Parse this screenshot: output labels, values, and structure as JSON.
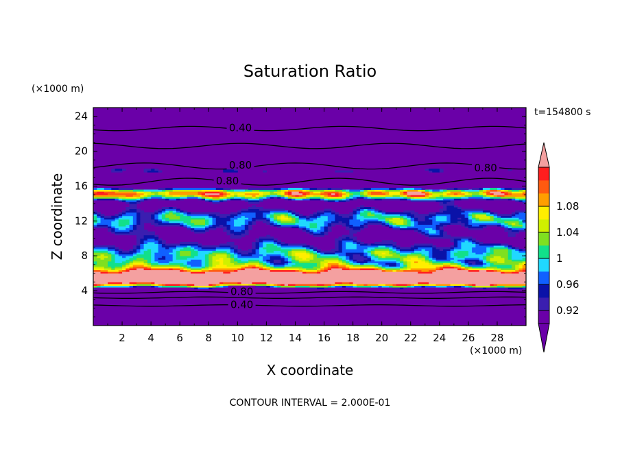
{
  "chart_data": {
    "type": "contour",
    "title": "Saturation Ratio",
    "xlabel": "X coordinate",
    "ylabel": "Z coordinate",
    "x_unit": "(×1000 m)",
    "y_unit": "(×1000 m)",
    "time_label": "t=154800 s",
    "contour_interval_label": "CONTOUR INTERVAL = 2.000E-01",
    "xlim": [
      0,
      30
    ],
    "ylim": [
      0,
      25
    ],
    "x_ticks": [
      2,
      4,
      6,
      8,
      10,
      12,
      14,
      16,
      18,
      20,
      22,
      24,
      26,
      28
    ],
    "y_ticks": [
      4,
      8,
      12,
      16,
      20,
      24
    ],
    "contour_labels": [
      {
        "text": "0.40",
        "x": 10.2,
        "z": 22.6
      },
      {
        "text": "0.80",
        "x": 10.2,
        "z": 18.3
      },
      {
        "text": "0.80",
        "x": 9.3,
        "z": 16.5
      },
      {
        "text": "0.80",
        "x": 27.2,
        "z": 18.0
      },
      {
        "text": "0.80",
        "x": 10.3,
        "z": 3.8
      },
      {
        "text": "0.40",
        "x": 10.3,
        "z": 2.3
      }
    ],
    "colorbar": {
      "levels": [
        "0.92",
        "0.96",
        "1",
        "1.04",
        "1.08"
      ],
      "colors": [
        "#6a00a8",
        "#3a1eb0",
        "#0a12a8",
        "#1060ff",
        "#20d8ff",
        "#12e08a",
        "#7fe020",
        "#d0f000",
        "#ffee00",
        "#ff9e00",
        "#ff5a10",
        "#ff1e1e",
        "#f4a0a0"
      ],
      "under_color": "#6a00a8",
      "over_color": "#f4a0a0"
    }
  }
}
